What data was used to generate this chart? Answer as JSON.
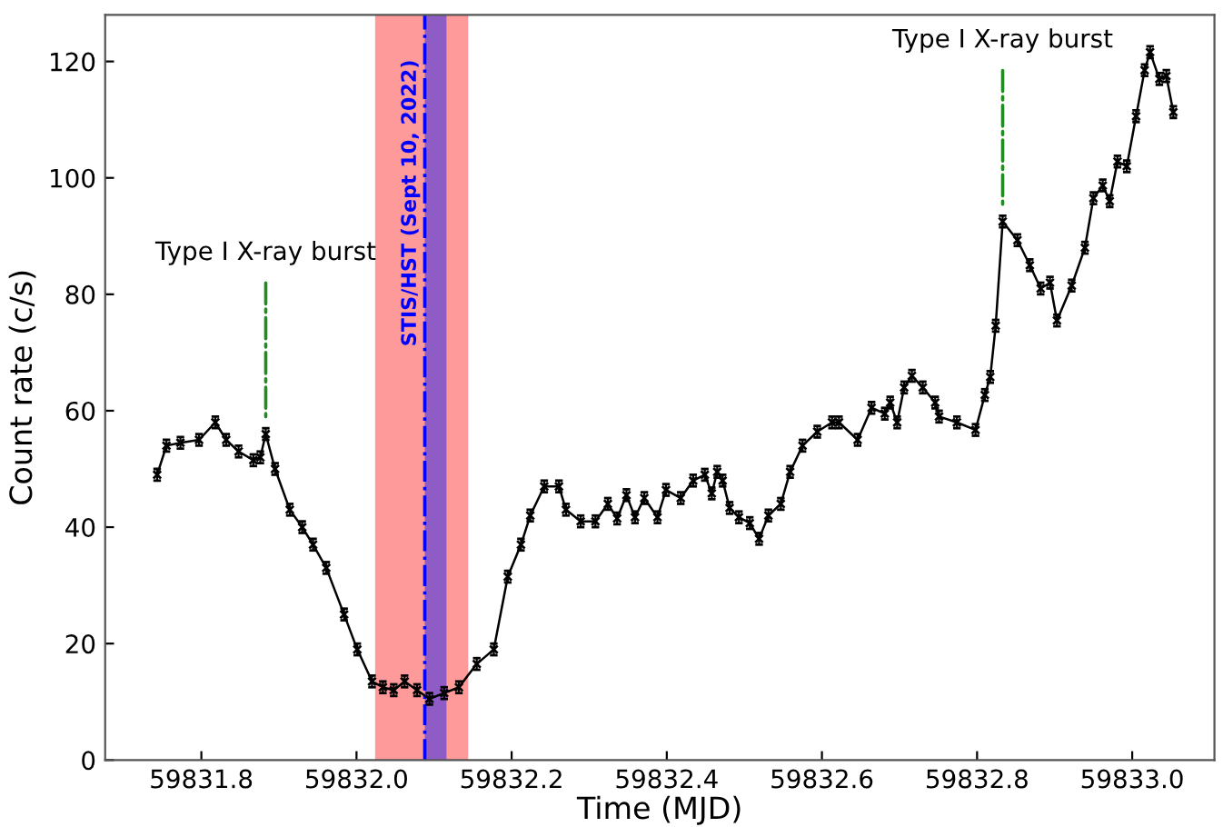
{
  "chart_data": {
    "type": "line",
    "xlabel": "Time (MJD)",
    "ylabel": "Count rate (c/s)",
    "xlim": [
      59831.676,
      59833.106
    ],
    "ylim": [
      0,
      128
    ],
    "xticks": [
      {
        "value": 59831.8,
        "label": "59831.8"
      },
      {
        "value": 59832.0,
        "label": "59832.0"
      },
      {
        "value": 59832.2,
        "label": "59832.2"
      },
      {
        "value": 59832.4,
        "label": "59832.4"
      },
      {
        "value": 59832.6,
        "label": "59832.6"
      },
      {
        "value": 59832.8,
        "label": "59832.8"
      },
      {
        "value": 59833.0,
        "label": "59833.0"
      }
    ],
    "yticks": [
      0,
      20,
      40,
      60,
      80,
      100,
      120
    ],
    "grid": false,
    "legend": false,
    "marker": "cross",
    "line_style": "solid",
    "series": [
      {
        "color": "#000000",
        "x": [
          59831.743,
          59831.755,
          59831.773,
          59831.797,
          59831.818,
          59831.832,
          59831.848,
          59831.867,
          59831.876,
          59831.883,
          59831.895,
          59831.914,
          59831.93,
          59831.944,
          59831.961,
          59831.984,
          59832.001,
          59832.02,
          59832.034,
          59832.048,
          59832.062,
          59832.078,
          59832.094,
          59832.113,
          59832.132,
          59832.155,
          59832.177,
          59832.195,
          59832.212,
          59832.224,
          59832.242,
          59832.261,
          59832.27,
          59832.289,
          59832.308,
          59832.324,
          59832.336,
          59832.348,
          59832.359,
          59832.371,
          59832.388,
          59832.399,
          59832.418,
          59832.434,
          59832.449,
          59832.458,
          59832.465,
          59832.472,
          59832.481,
          59832.493,
          59832.507,
          59832.519,
          59832.531,
          59832.547,
          59832.559,
          59832.575,
          59832.594,
          59832.613,
          59832.622,
          59832.646,
          59832.664,
          59832.681,
          59832.688,
          59832.697,
          59832.706,
          59832.716,
          59832.73,
          59832.746,
          59832.751,
          59832.774,
          59832.798,
          59832.81,
          59832.817,
          59832.824,
          59832.833,
          59832.852,
          59832.868,
          59832.882,
          59832.894,
          59832.903,
          59832.922,
          59832.939,
          59832.95,
          59832.962,
          59832.971,
          59832.981,
          59832.993,
          59833.005,
          59833.016,
          59833.023,
          59833.035,
          59833.044,
          59833.053
        ],
        "values": [
          49,
          54,
          54.5,
          55,
          58,
          55,
          53,
          51.5,
          52,
          56,
          50,
          43,
          40,
          37,
          33,
          25,
          19,
          13.5,
          12.5,
          12,
          13.5,
          12,
          10.5,
          11.5,
          12.5,
          16.5,
          19,
          31.5,
          37,
          42,
          47,
          47,
          43,
          41,
          41,
          44,
          41.5,
          45.5,
          41.7,
          45,
          41.7,
          46.4,
          45,
          48,
          49,
          45.8,
          49.5,
          48,
          43.3,
          41.7,
          40.7,
          38,
          42,
          44,
          49.5,
          54,
          56.4,
          58,
          58,
          55,
          60.5,
          59.5,
          61.4,
          58,
          64,
          66,
          64,
          61.4,
          59,
          58,
          56.7,
          62.7,
          65.8,
          74.6,
          92.5,
          89.3,
          85,
          81,
          82,
          75.5,
          81.5,
          88,
          96.5,
          98.7,
          96,
          102.8,
          102,
          110.6,
          118.5,
          121.6,
          117,
          117.5,
          111.3
        ],
        "errors": [
          1,
          1,
          1,
          1,
          1,
          1,
          1,
          1,
          1,
          1,
          1,
          1,
          1,
          1,
          1,
          1,
          1,
          1,
          1,
          1,
          1,
          1,
          1,
          1,
          1,
          1,
          1,
          1,
          1,
          1,
          1,
          1,
          1,
          1,
          1,
          1,
          1,
          1,
          1,
          1,
          1,
          1,
          1,
          1,
          1,
          1,
          1,
          1,
          1,
          1,
          1,
          1,
          1,
          1,
          1,
          1,
          1,
          1,
          1,
          1,
          1,
          1,
          1,
          1,
          1,
          1,
          1,
          1,
          1,
          1,
          1,
          1,
          1,
          1,
          1,
          1,
          1,
          1,
          1,
          1,
          1,
          1,
          1,
          1,
          1,
          1,
          1,
          1,
          1,
          1,
          1,
          1,
          1
        ]
      }
    ],
    "bands": [
      {
        "axis": "x",
        "from": 59832.024,
        "to": 59832.144,
        "color": "#ff9a9a"
      },
      {
        "axis": "x",
        "from": 59832.088,
        "to": 59832.116,
        "color": "#8f5cc6"
      }
    ],
    "ref_lines": [
      {
        "axis": "x",
        "value": 59832.088,
        "label": "STIS/HST (Sept 10, 2022)",
        "color": "#0000ff",
        "line_style": "dashdot"
      }
    ],
    "annotations": [
      {
        "text": "Type I X-ray burst",
        "x": 59831.883,
        "y": 56
      },
      {
        "text": "Type I X-ray burst",
        "x": 59832.833,
        "y": 92.5
      }
    ]
  }
}
